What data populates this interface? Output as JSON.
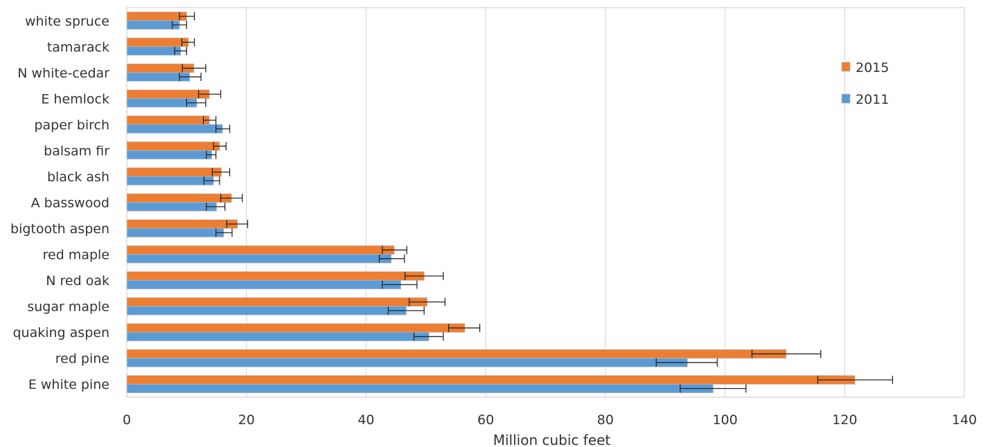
{
  "chart_data": {
    "type": "bar",
    "orientation": "horizontal",
    "title": "",
    "xlabel": "Million cubic feet",
    "ylabel": "",
    "xlim": [
      0,
      140
    ],
    "xticks": [
      "0",
      "20",
      "40",
      "60",
      "80",
      "100",
      "120",
      "140"
    ],
    "grid": "vertical",
    "legend_position": "right",
    "categories": [
      "white spruce",
      "tamarack",
      "N white-cedar",
      "E hemlock",
      "paper birch",
      "balsam fir",
      "black ash",
      "A basswood",
      "bigtooth aspen",
      "red maple",
      "N red oak",
      "sugar maple",
      "quaking aspen",
      "red pine",
      "E white pine"
    ],
    "series": [
      {
        "name": "2015",
        "color": "#ED7D31",
        "values": [
          10.0,
          10.3,
          11.2,
          13.8,
          13.8,
          15.5,
          15.8,
          17.5,
          18.5,
          44.7,
          49.7,
          50.2,
          56.5,
          110.2,
          121.7
        ],
        "err_low": [
          8.8,
          9.2,
          9.3,
          12.0,
          12.8,
          14.5,
          14.3,
          15.7,
          16.7,
          42.7,
          46.5,
          47.2,
          53.8,
          104.5,
          115.5
        ],
        "err_high": [
          11.3,
          11.3,
          13.2,
          15.7,
          14.9,
          16.6,
          17.2,
          19.3,
          20.2,
          46.8,
          52.9,
          53.2,
          59.0,
          116.0,
          128.0
        ]
      },
      {
        "name": "2011",
        "color": "#5B9BD5",
        "values": [
          8.8,
          9.0,
          10.5,
          11.7,
          16.0,
          14.2,
          14.5,
          15.0,
          16.2,
          44.2,
          45.8,
          46.7,
          50.5,
          93.7,
          98.0
        ],
        "err_low": [
          7.6,
          8.0,
          8.8,
          10.0,
          14.9,
          13.3,
          12.9,
          13.3,
          14.9,
          42.2,
          42.7,
          43.7,
          48.0,
          88.5,
          92.5
        ],
        "err_high": [
          10.0,
          10.0,
          12.4,
          13.2,
          17.2,
          14.9,
          15.5,
          16.4,
          17.6,
          46.4,
          48.5,
          49.7,
          52.9,
          98.7,
          103.5
        ]
      }
    ]
  }
}
